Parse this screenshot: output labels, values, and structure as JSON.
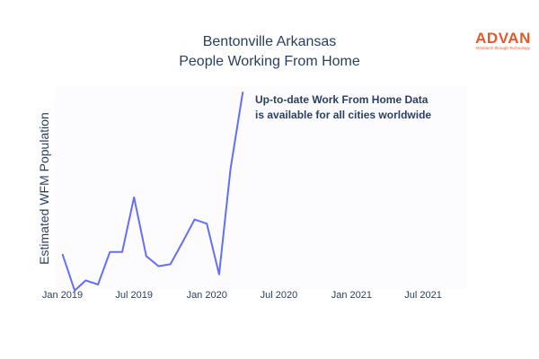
{
  "logo": {
    "name": "ADVAN",
    "tagline": "Research through Technology",
    "color": "#e8582a"
  },
  "chart_data": {
    "type": "line",
    "title_lines": [
      "Bentonville Arkansas",
      "People Working From Home"
    ],
    "xlabel": "",
    "ylabel": "Estimated WFM Population",
    "y_tick_labels": false,
    "xlim": [
      "2018-12-15",
      "2021-10-20"
    ],
    "ylim": [
      0,
      100
    ],
    "x_ticks": [
      {
        "date": "2019-01-01",
        "label": "Jan 2019"
      },
      {
        "date": "2019-07-01",
        "label": "Jul 2019"
      },
      {
        "date": "2020-01-01",
        "label": "Jan 2020"
      },
      {
        "date": "2020-07-01",
        "label": "Jul 2020"
      },
      {
        "date": "2021-01-01",
        "label": "Jan 2021"
      },
      {
        "date": "2021-07-01",
        "label": "Jul 2021"
      }
    ],
    "series": [
      {
        "color": "#636efa",
        "x": [
          "2019-01-01",
          "2019-02-01",
          "2019-03-01",
          "2019-04-01",
          "2019-05-01",
          "2019-06-01",
          "2019-07-01",
          "2019-08-01",
          "2019-09-01",
          "2019-10-01",
          "2019-11-01",
          "2019-12-01",
          "2020-01-01",
          "2020-02-01",
          "2020-03-01",
          "2020-04-01",
          "2020-05-01"
        ],
        "y": [
          19,
          1,
          6,
          4,
          20,
          20,
          47,
          18,
          13,
          14,
          25,
          36,
          34,
          9,
          61,
          99,
          null
        ]
      }
    ],
    "annotation": {
      "lines": [
        "Up-to-date Work From Home Data",
        "is available for all cities worldwide"
      ]
    },
    "grid": false,
    "legend": "none",
    "plot_background": "#fcfcff"
  }
}
